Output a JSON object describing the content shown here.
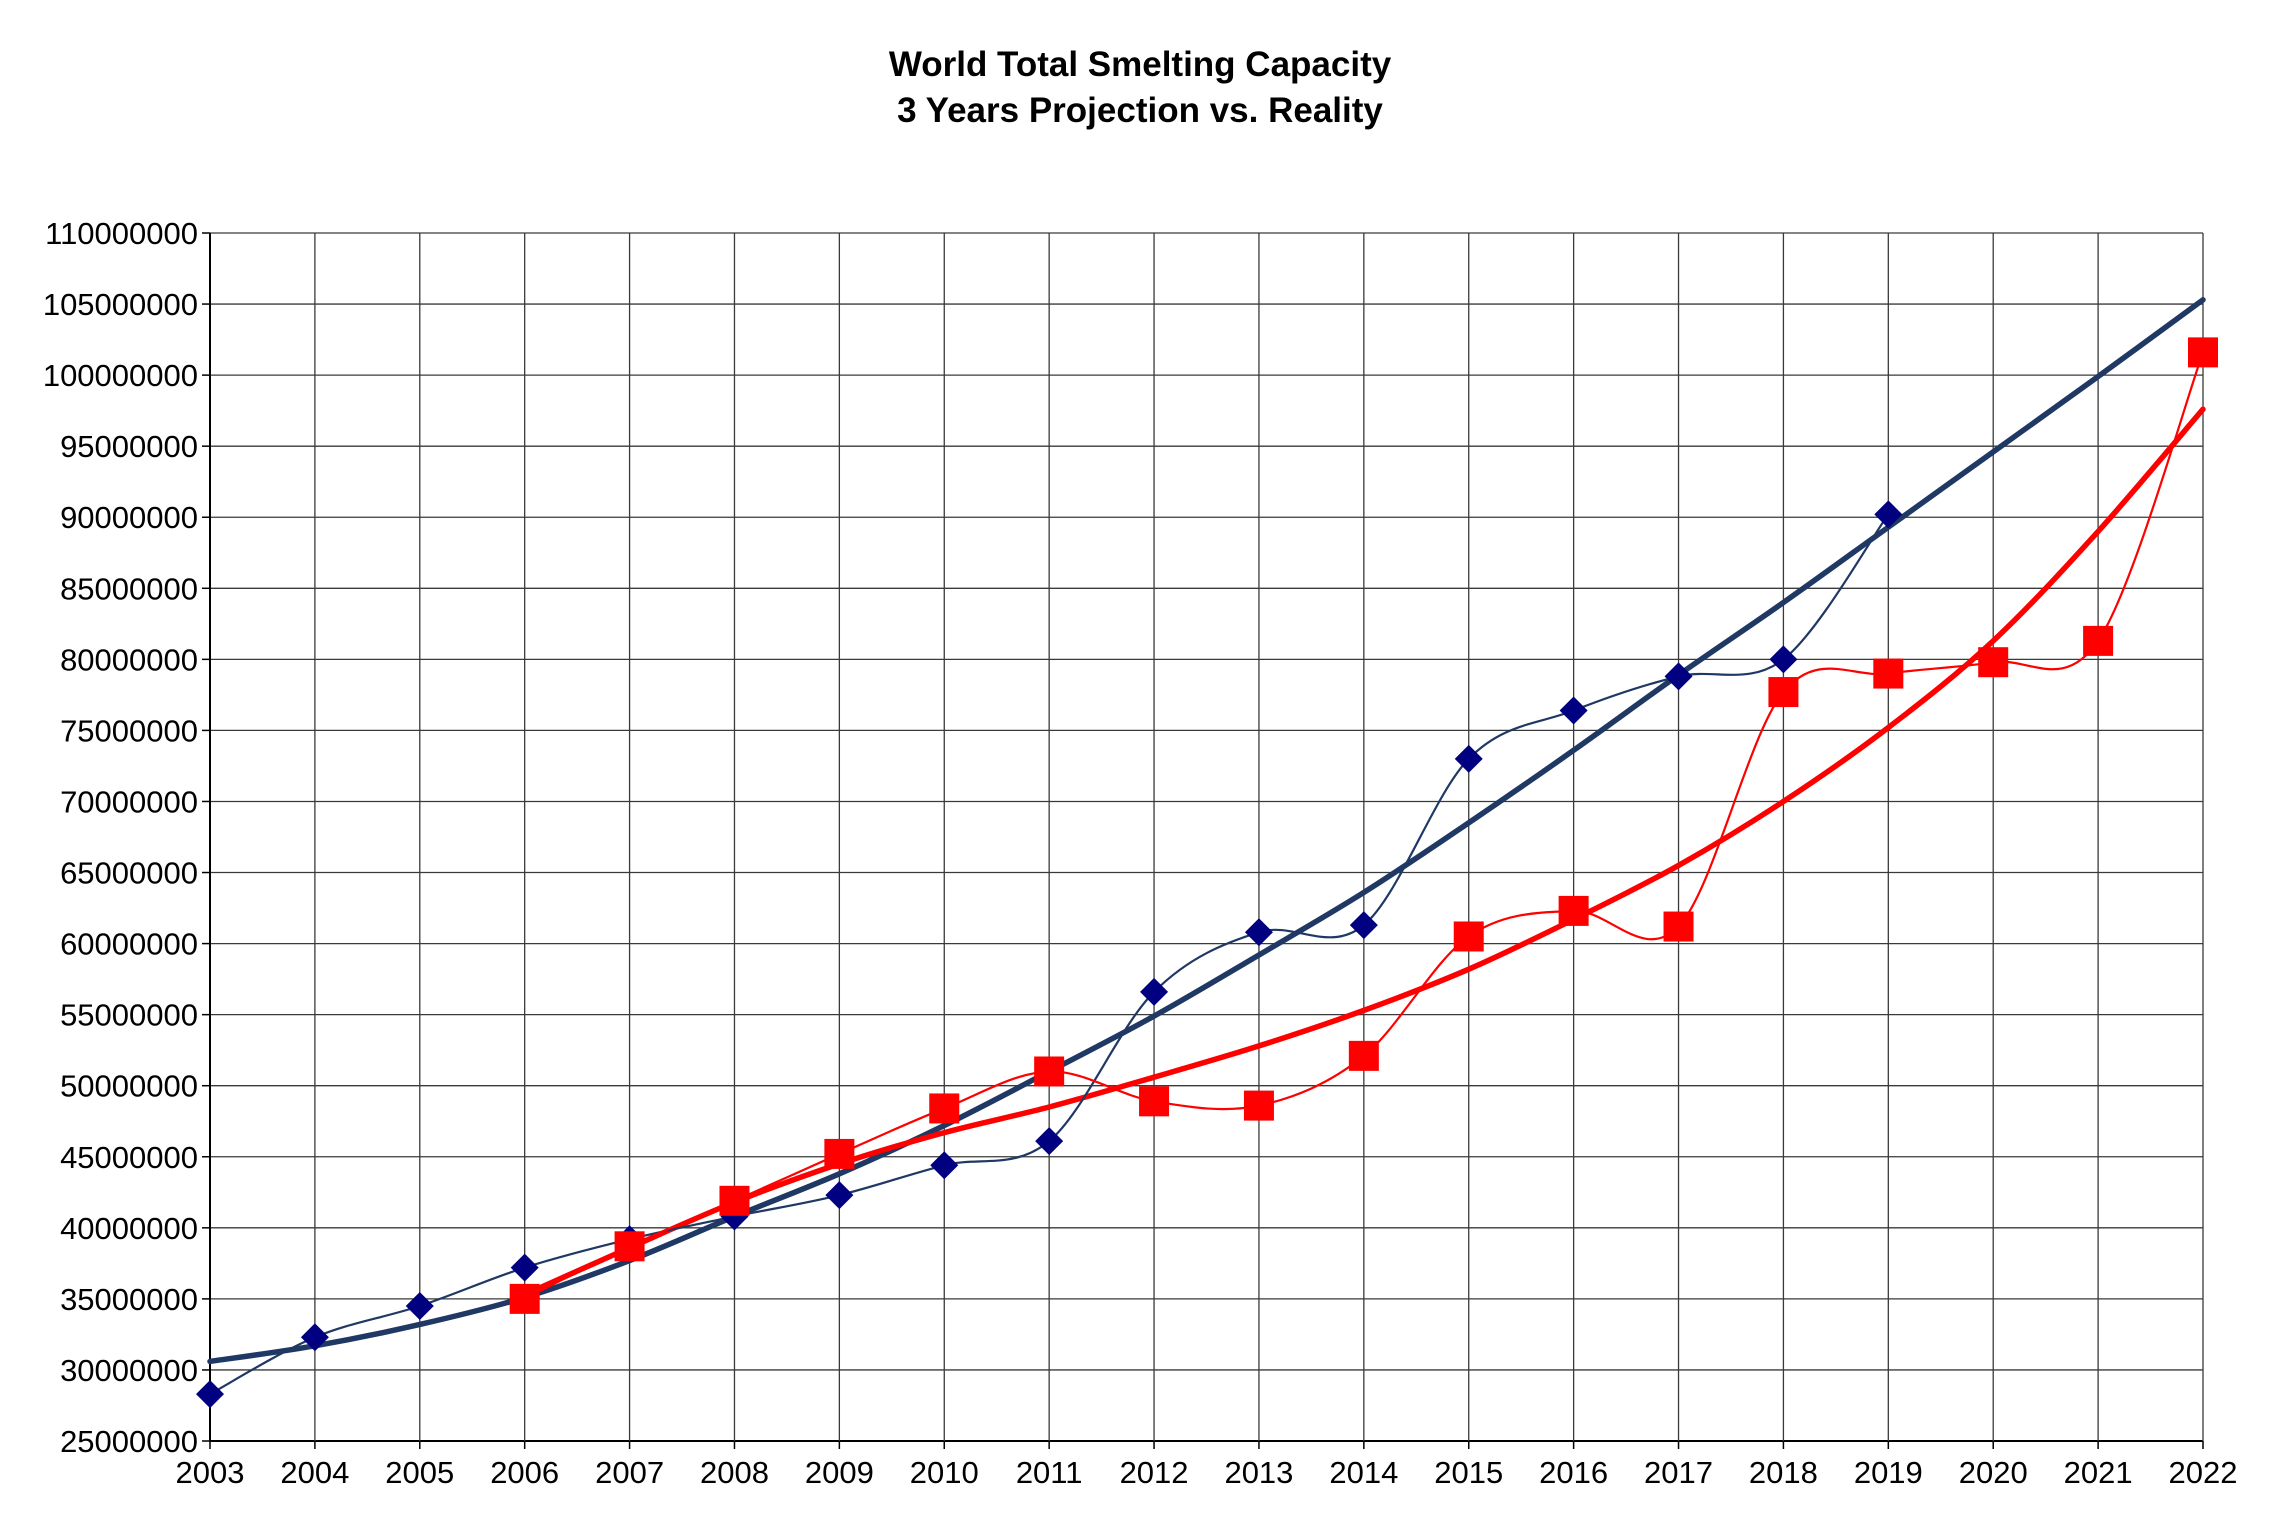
{
  "chart_data": {
    "type": "line",
    "title": "World Total Smelting Capacity",
    "subtitle": "3 Years Projection vs. Reality",
    "xlabel": "",
    "ylabel": "",
    "x": [
      2003,
      2004,
      2005,
      2006,
      2007,
      2008,
      2009,
      2010,
      2011,
      2012,
      2013,
      2014,
      2015,
      2016,
      2017,
      2018,
      2019,
      2020,
      2021,
      2022
    ],
    "xlim": [
      2003,
      2022
    ],
    "ylim": [
      25000000,
      110000000
    ],
    "yticks": [
      25000000,
      30000000,
      35000000,
      40000000,
      45000000,
      50000000,
      55000000,
      60000000,
      65000000,
      70000000,
      75000000,
      80000000,
      85000000,
      90000000,
      95000000,
      100000000,
      105000000,
      110000000
    ],
    "grid": true,
    "legend": "none",
    "series": [
      {
        "marker": "diamond",
        "color": "#000080",
        "line_color": "#1f3864",
        "points": [
          [
            2003,
            28300000
          ],
          [
            2004,
            32300000
          ],
          [
            2005,
            34500000
          ],
          [
            2006,
            37200000
          ],
          [
            2007,
            39200000
          ],
          [
            2008,
            40800000
          ],
          [
            2009,
            42300000
          ],
          [
            2010,
            44400000
          ],
          [
            2011,
            46100000
          ],
          [
            2012,
            56600000
          ],
          [
            2013,
            60800000
          ],
          [
            2014,
            61300000
          ],
          [
            2015,
            73000000
          ],
          [
            2016,
            76400000
          ],
          [
            2017,
            78800000
          ],
          [
            2018,
            80000000
          ],
          [
            2019,
            90200000
          ]
        ]
      },
      {
        "marker": "square",
        "color": "#ff0000",
        "line_color": "#ff0000",
        "points": [
          [
            2006,
            35000000
          ],
          [
            2007,
            38700000
          ],
          [
            2008,
            41900000
          ],
          [
            2009,
            45200000
          ],
          [
            2010,
            48400000
          ],
          [
            2011,
            51000000
          ],
          [
            2012,
            48900000
          ],
          [
            2013,
            48600000
          ],
          [
            2014,
            52100000
          ],
          [
            2015,
            60500000
          ],
          [
            2016,
            62300000
          ],
          [
            2017,
            61200000
          ],
          [
            2018,
            77700000
          ],
          [
            2019,
            79000000
          ],
          [
            2020,
            79800000
          ],
          [
            2021,
            81300000
          ],
          [
            2022,
            101600000
          ]
        ]
      }
    ],
    "trendlines": [
      {
        "of_series": 0,
        "color": "#1f3864",
        "points": [
          [
            2003,
            30600000
          ],
          [
            2004,
            31700000
          ],
          [
            2005,
            33200000
          ],
          [
            2006,
            35100000
          ],
          [
            2007,
            37700000
          ],
          [
            2008,
            40800000
          ],
          [
            2009,
            43800000
          ],
          [
            2010,
            47200000
          ],
          [
            2011,
            51000000
          ],
          [
            2012,
            54900000
          ],
          [
            2013,
            59200000
          ],
          [
            2014,
            63600000
          ],
          [
            2015,
            68500000
          ],
          [
            2016,
            73600000
          ],
          [
            2017,
            78900000
          ],
          [
            2018,
            84000000
          ],
          [
            2019,
            89300000
          ],
          [
            2020,
            94600000
          ],
          [
            2021,
            99900000
          ],
          [
            2022,
            105300000
          ]
        ]
      },
      {
        "of_series": 1,
        "color": "#ff0000",
        "points": [
          [
            2006,
            35300000
          ],
          [
            2007,
            38600000
          ],
          [
            2008,
            41800000
          ],
          [
            2009,
            44500000
          ],
          [
            2010,
            46700000
          ],
          [
            2011,
            48500000
          ],
          [
            2012,
            50600000
          ],
          [
            2013,
            52800000
          ],
          [
            2014,
            55300000
          ],
          [
            2015,
            58200000
          ],
          [
            2016,
            61700000
          ],
          [
            2017,
            65500000
          ],
          [
            2018,
            70000000
          ],
          [
            2019,
            75200000
          ],
          [
            2020,
            81300000
          ],
          [
            2021,
            89000000
          ],
          [
            2022,
            97600000
          ]
        ]
      }
    ]
  }
}
